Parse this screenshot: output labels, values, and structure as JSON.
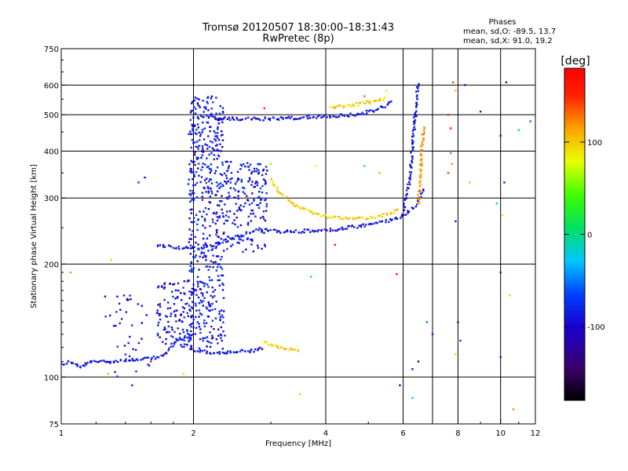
{
  "chart_data": {
    "type": "scatter",
    "title": "Tromsø 20120507 18:30:00–18:31:43",
    "subtitle": "RwPretec (8p)",
    "xlabel": "Frequency [MHz]",
    "ylabel": "Stationary phase Virtual Height [km]",
    "x_scale": "log",
    "y_scale": "log",
    "xlim": [
      1,
      12
    ],
    "ylim": [
      75,
      750
    ],
    "x_ticks": [
      1,
      2,
      4,
      6,
      8,
      10,
      12
    ],
    "y_ticks": [
      75,
      100,
      200,
      300,
      400,
      500,
      600,
      750
    ],
    "x_gridlines": [
      2,
      4,
      6,
      7,
      8,
      10
    ],
    "y_gridlines": [
      100,
      200,
      300,
      400,
      500,
      600
    ],
    "grid": true,
    "phases": {
      "heading": "Phases",
      "line_o": "mean, sd,O: -89.5, 13.7",
      "line_x": "mean, sd,X:  91.0, 19.2"
    },
    "colorbar": {
      "label": "[deg]",
      "ticks": [
        100,
        0,
        -100
      ],
      "range": [
        -180,
        180
      ],
      "colormap": "rainbow"
    },
    "traces": [
      {
        "x": [
          1.0,
          1.05,
          1.1,
          1.15,
          1.2,
          1.3,
          1.4,
          1.5,
          1.6,
          1.7,
          1.75
        ],
        "y": [
          108,
          110,
          106,
          109,
          110,
          110,
          111,
          111,
          112,
          114,
          116
        ],
        "phase": -100
      },
      {
        "x": [
          1.75,
          1.8,
          1.85,
          1.9,
          1.95
        ],
        "y": [
          118,
          122,
          128,
          124,
          120
        ],
        "phase": -100
      },
      {
        "x": [
          2.0,
          2.1,
          2.2,
          2.3,
          2.4,
          2.5,
          2.6,
          2.7,
          2.8,
          2.9
        ],
        "y": [
          118,
          117,
          116,
          116,
          116,
          117,
          117,
          117,
          118,
          120
        ],
        "phase": -100
      },
      {
        "x": [
          2.9,
          3.0,
          3.1,
          3.2,
          3.3,
          3.4,
          3.5
        ],
        "y": [
          125,
          121,
          120,
          119,
          119,
          118,
          118
        ],
        "phase": 100
      },
      {
        "x": [
          1.65,
          1.7,
          1.8,
          1.9,
          2.0,
          2.1,
          2.2,
          2.3,
          2.4,
          2.5,
          2.6,
          2.7,
          2.8,
          3.0,
          3.2,
          3.4,
          3.6
        ],
        "y": [
          225,
          224,
          222,
          221,
          220,
          221,
          224,
          228,
          232,
          236,
          240,
          244,
          248,
          245,
          244,
          244,
          244
        ],
        "phase": -100
      },
      {
        "x": [
          3.6,
          3.8,
          4.0,
          4.2,
          4.5,
          4.8,
          5.0,
          5.3,
          5.6,
          5.9,
          6.1,
          6.3,
          6.5,
          6.7
        ],
        "y": [
          245,
          245,
          246,
          247,
          250,
          252,
          255,
          258,
          262,
          266,
          272,
          282,
          295,
          320
        ],
        "phase": -100
      },
      {
        "x": [
          3.0,
          3.1,
          3.3,
          3.5,
          3.8,
          4.0,
          4.3,
          4.6,
          5.0,
          5.3,
          5.6,
          5.9
        ],
        "y": [
          335,
          315,
          295,
          283,
          272,
          268,
          266,
          265,
          266,
          268,
          272,
          280
        ],
        "phase": 100
      },
      {
        "x": [
          2.1,
          2.2,
          2.4,
          2.6,
          2.8,
          3.0,
          3.3,
          3.6,
          4.0,
          4.3,
          4.6,
          4.9,
          5.2,
          5.5,
          5.7
        ],
        "y": [
          495,
          490,
          488,
          487,
          487,
          488,
          490,
          492,
          495,
          497,
          500,
          505,
          515,
          530,
          545
        ],
        "phase": -100
      },
      {
        "x": [
          4.1,
          4.3,
          4.6,
          4.9,
          5.2,
          5.5
        ],
        "y": [
          520,
          525,
          530,
          537,
          545,
          555
        ],
        "phase": 100
      },
      {
        "x": [
          6.0,
          6.1,
          6.2,
          6.25,
          6.3,
          6.35,
          6.4,
          6.45,
          6.5
        ],
        "y": [
          280,
          300,
          330,
          370,
          410,
          450,
          500,
          560,
          610
        ],
        "phase": -100
      },
      {
        "x": [
          6.5,
          6.55,
          6.6,
          6.65,
          6.7
        ],
        "y": [
          290,
          330,
          380,
          430,
          470
        ],
        "phase": 120
      }
    ],
    "scatter_noise": [
      {
        "x": 7.8,
        "y": 610,
        "phase": 140
      },
      {
        "x": 7.9,
        "y": 580,
        "phase": 110
      },
      {
        "x": 7.6,
        "y": 500,
        "phase": 150
      },
      {
        "x": 7.7,
        "y": 460,
        "phase": 160
      },
      {
        "x": 7.7,
        "y": 395,
        "phase": 130
      },
      {
        "x": 7.75,
        "y": 370,
        "phase": 120
      },
      {
        "x": 8.3,
        "y": 600,
        "phase": -100
      },
      {
        "x": 9.0,
        "y": 510,
        "phase": -100
      },
      {
        "x": 10.0,
        "y": 440,
        "phase": -100
      },
      {
        "x": 10.2,
        "y": 330,
        "phase": -100
      },
      {
        "x": 10.3,
        "y": 610,
        "phase": -100
      },
      {
        "x": 11.0,
        "y": 455,
        "phase": -20
      },
      {
        "x": 11.7,
        "y": 480,
        "phase": -60
      },
      {
        "x": 9.8,
        "y": 290,
        "phase": -10
      },
      {
        "x": 10.1,
        "y": 270,
        "phase": 90
      },
      {
        "x": 7.9,
        "y": 260,
        "phase": -100
      },
      {
        "x": 7.6,
        "y": 350,
        "phase": 140
      },
      {
        "x": 8.5,
        "y": 330,
        "phase": 100
      },
      {
        "x": 10.0,
        "y": 190,
        "phase": -100
      },
      {
        "x": 10.5,
        "y": 165,
        "phase": 100
      },
      {
        "x": 8.0,
        "y": 140,
        "phase": -100
      },
      {
        "x": 7.0,
        "y": 130,
        "phase": -90
      },
      {
        "x": 6.8,
        "y": 140,
        "phase": -60
      },
      {
        "x": 10.0,
        "y": 113,
        "phase": -100
      },
      {
        "x": 6.3,
        "y": 105,
        "phase": -100
      },
      {
        "x": 6.5,
        "y": 110,
        "phase": -130
      },
      {
        "x": 5.9,
        "y": 95,
        "phase": -120
      },
      {
        "x": 6.3,
        "y": 88,
        "phase": -10
      },
      {
        "x": 7.9,
        "y": 115,
        "phase": 60
      },
      {
        "x": 8.1,
        "y": 125,
        "phase": -80
      },
      {
        "x": 5.8,
        "y": 188,
        "phase": 170
      },
      {
        "x": 4.2,
        "y": 225,
        "phase": 160
      },
      {
        "x": 3.7,
        "y": 185,
        "phase": 20
      },
      {
        "x": 3.8,
        "y": 365,
        "phase": 80
      },
      {
        "x": 3.5,
        "y": 90,
        "phase": 60
      },
      {
        "x": 10.7,
        "y": 82,
        "phase": 120
      },
      {
        "x": 1.3,
        "y": 205,
        "phase": 100
      },
      {
        "x": 1.6,
        "y": 110,
        "phase": 170
      },
      {
        "x": 1.9,
        "y": 102,
        "phase": 90
      },
      {
        "x": 1.28,
        "y": 102,
        "phase": 110
      },
      {
        "x": 1.45,
        "y": 95,
        "phase": -100
      },
      {
        "x": 1.05,
        "y": 190,
        "phase": 120
      },
      {
        "x": 1.5,
        "y": 330,
        "phase": -90
      },
      {
        "x": 1.55,
        "y": 340,
        "phase": -100
      },
      {
        "x": 4.9,
        "y": 365,
        "phase": 30
      },
      {
        "x": 5.3,
        "y": 350,
        "phase": 110
      },
      {
        "x": 3.0,
        "y": 370,
        "phase": 60
      },
      {
        "x": 2.9,
        "y": 520,
        "phase": 150
      },
      {
        "x": 4.9,
        "y": 560,
        "phase": 130
      },
      {
        "x": 5.5,
        "y": 580,
        "phase": 90
      }
    ]
  }
}
